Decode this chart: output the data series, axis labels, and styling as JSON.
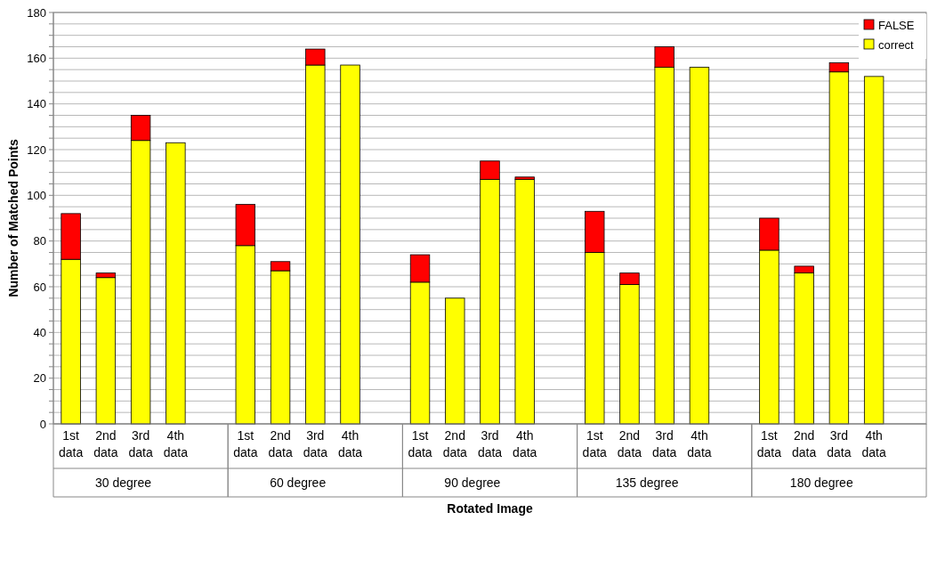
{
  "chart_data": {
    "type": "bar",
    "stacked": true,
    "xlabel": "Rotated Image",
    "ylabel": "Number of Matched Points",
    "categories": [
      "1st data",
      "2nd data",
      "3rd data",
      "4th data",
      null,
      "1st data",
      "2nd data",
      "3rd data",
      "4th data",
      null,
      "1st data",
      "2nd data",
      "3rd data",
      "4th data",
      null,
      "1st data",
      "2nd data",
      "3rd data",
      "4th data",
      null,
      "1st data",
      "2nd data",
      "3rd data",
      "4th data"
    ],
    "series": [
      {
        "name": "correct",
        "color": "#ffff00",
        "values": [
          72,
          64,
          124,
          123,
          null,
          78,
          67,
          157,
          157,
          null,
          62,
          55,
          107,
          107,
          null,
          75,
          61,
          156,
          156,
          null,
          76,
          66,
          154,
          152
        ]
      },
      {
        "name": "FALSE",
        "color": "#ff0000",
        "values": [
          20,
          2,
          11,
          0,
          null,
          18,
          4,
          7,
          0,
          null,
          12,
          0,
          8,
          1,
          null,
          18,
          5,
          9,
          0,
          null,
          14,
          3,
          4,
          0
        ]
      }
    ],
    "annotations": [
      "30 degree",
      "60 degree",
      "90 degree",
      "135 degree",
      "180 degree"
    ],
    "ylim": [
      0,
      180
    ],
    "yticks": [
      0,
      {
        "value": 5,
        "label": null
      },
      {
        "value": 10,
        "label": null
      },
      {
        "value": 15,
        "label": null
      },
      20,
      {
        "value": 25,
        "label": null
      },
      {
        "value": 30,
        "label": null
      },
      {
        "value": 35,
        "label": null
      },
      40,
      {
        "value": 45,
        "label": null
      },
      {
        "value": 50,
        "label": null
      },
      {
        "value": 55,
        "label": null
      },
      60,
      {
        "value": 65,
        "label": null
      },
      {
        "value": 70,
        "label": null
      },
      {
        "value": 75,
        "label": null
      },
      80,
      {
        "value": 85,
        "label": null
      },
      {
        "value": 90,
        "label": null
      },
      {
        "value": 95,
        "label": null
      },
      100,
      {
        "value": 105,
        "label": null
      },
      {
        "value": 110,
        "label": null
      },
      {
        "value": 115,
        "label": null
      },
      120,
      {
        "value": 125,
        "label": null
      },
      {
        "value": 130,
        "label": null
      },
      {
        "value": 135,
        "label": null
      },
      140,
      {
        "value": 145,
        "label": null
      },
      {
        "value": 150,
        "label": null
      },
      {
        "value": 155,
        "label": null
      },
      160,
      {
        "value": 165,
        "label": null
      },
      {
        "value": 170,
        "label": null
      },
      {
        "value": 175,
        "label": null
      },
      180
    ],
    "grid": "y",
    "legend": "top right"
  }
}
